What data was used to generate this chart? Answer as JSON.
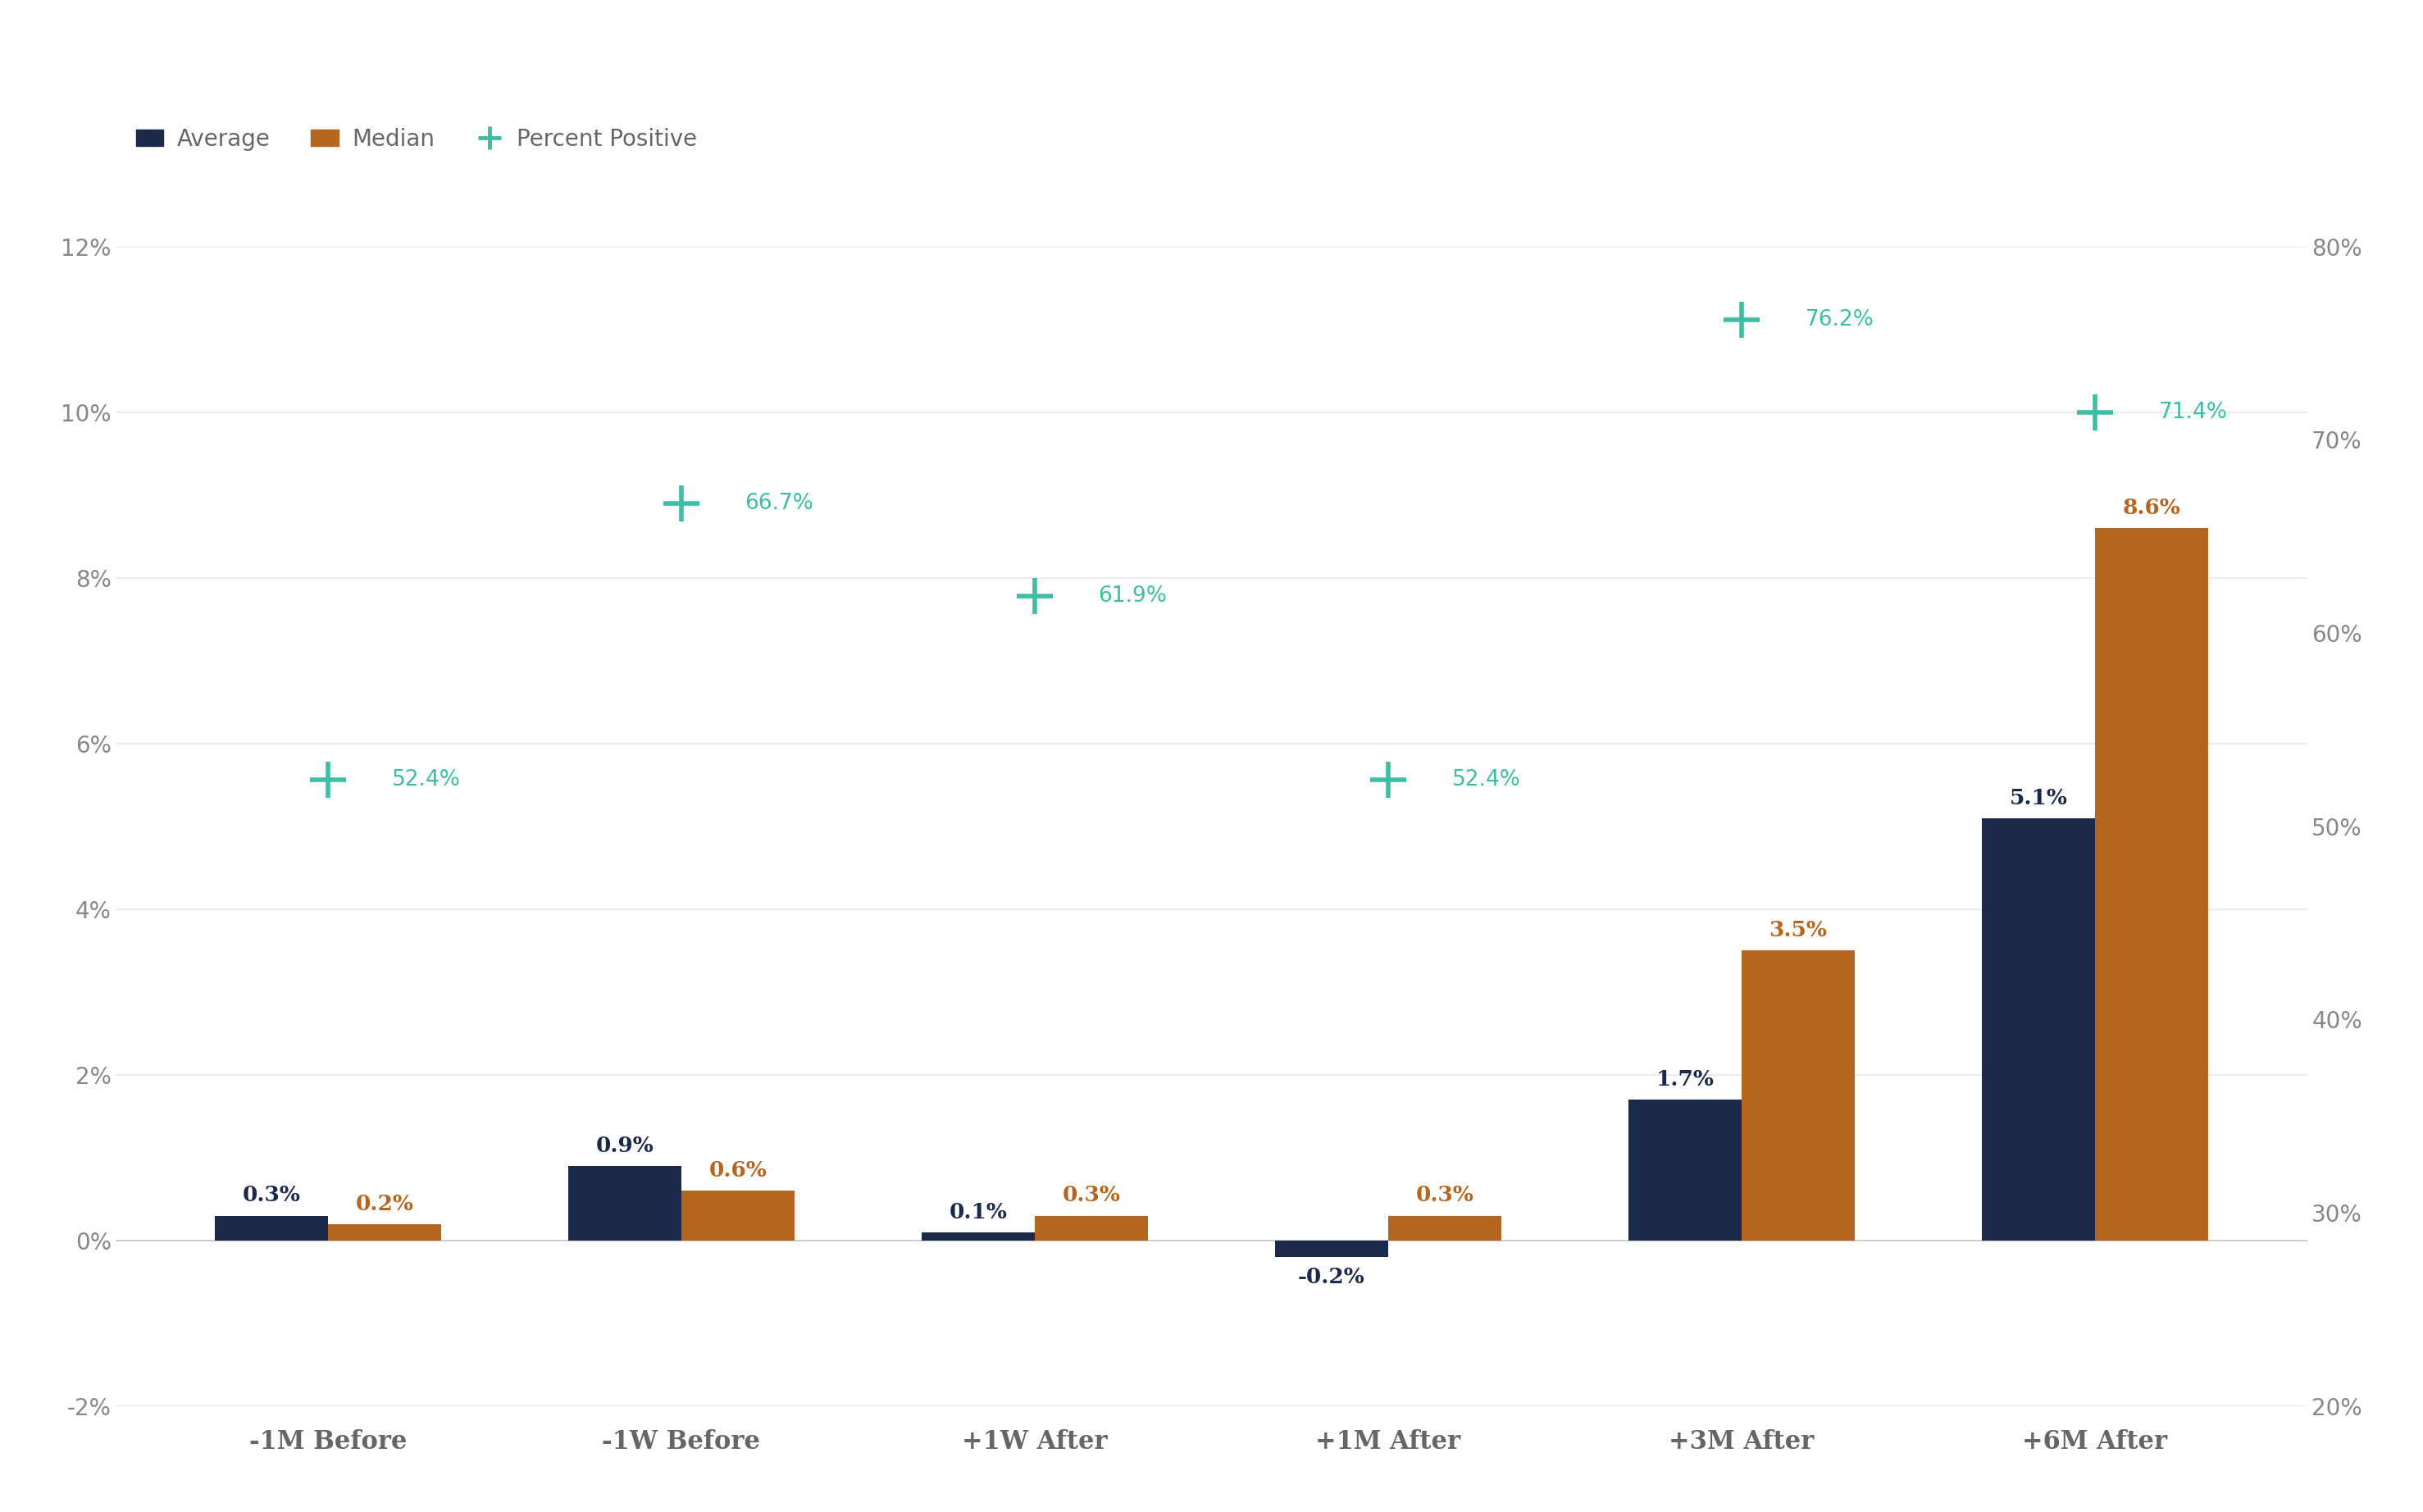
{
  "categories": [
    "-1M Before",
    "-1W Before",
    "+1W After",
    "+1M After",
    "+3M After",
    "+6M After"
  ],
  "avg_values": [
    0.3,
    0.9,
    0.1,
    -0.2,
    1.7,
    5.1
  ],
  "median_values": [
    0.2,
    0.6,
    0.3,
    0.3,
    3.5,
    8.6
  ],
  "pct_positive": [
    52.4,
    66.7,
    61.9,
    52.4,
    76.2,
    71.4
  ],
  "avg_labels": [
    "0.3%",
    "0.9%",
    "0.1%",
    "-0.2%",
    "1.7%",
    "5.1%"
  ],
  "median_labels": [
    "0.2%",
    "0.6%",
    "0.3%",
    "0.3%",
    "3.5%",
    "8.6%"
  ],
  "pct_labels": [
    "52.4%",
    "66.7%",
    "61.9%",
    "52.4%",
    "76.2%",
    "71.4%"
  ],
  "avg_color": "#1b2a4a",
  "median_color": "#b5651d",
  "pct_color": "#3dbda3",
  "bar_width": 0.32,
  "background_color": "#ffffff",
  "axis_color": "#888888",
  "tick_color": "#666666",
  "left_ylim": [
    -2,
    12
  ],
  "right_ylim": [
    20,
    80
  ],
  "left_yticks": [
    -2,
    0,
    2,
    4,
    6,
    8,
    10,
    12
  ],
  "right_yticks": [
    20,
    30,
    40,
    50,
    60,
    70,
    80
  ],
  "tick_fontsize": 20,
  "legend_fontsize": 20,
  "annotation_fontsize": 19,
  "pct_annotation_fontsize": 19,
  "xtick_fontsize": 22
}
